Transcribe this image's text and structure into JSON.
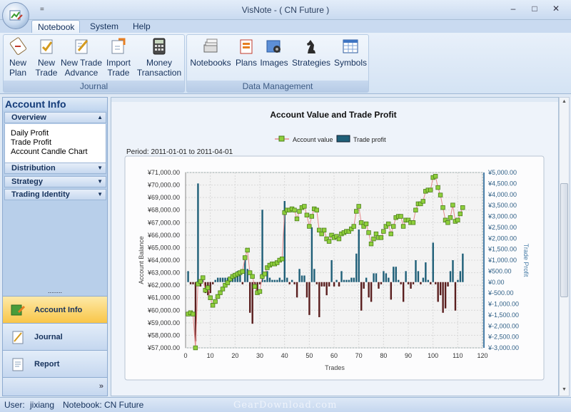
{
  "window": {
    "title": "VisNote - ( CN Future )",
    "qat_label": "=",
    "minimize": "–",
    "maximize": "□",
    "close": "✕",
    "accent": "#c9daf0"
  },
  "tabs": [
    "Notebook",
    "System",
    "Help"
  ],
  "ribbon": {
    "groups": [
      {
        "label": "Journal",
        "buttons": [
          {
            "line1": "New",
            "line2": "Plan",
            "icon": "new-plan-icon"
          },
          {
            "line1": "New",
            "line2": "Trade",
            "icon": "new-trade-icon"
          },
          {
            "line1": "New Trade",
            "line2": "Advance",
            "icon": "new-trade-advance-icon"
          },
          {
            "line1": "Import",
            "line2": "Trade",
            "icon": "import-trade-icon"
          },
          {
            "line1": "Money",
            "line2": "Transaction",
            "icon": "calculator-icon"
          }
        ]
      },
      {
        "label": "Data Management",
        "buttons": [
          {
            "line1": "Notebooks",
            "icon": "notebooks-icon"
          },
          {
            "line1": "Plans",
            "icon": "plans-icon"
          },
          {
            "line1": "Images",
            "icon": "images-icon"
          },
          {
            "line1": "Strategies",
            "icon": "chess-knight-icon"
          },
          {
            "line1": "Symbols",
            "icon": "symbols-table-icon"
          }
        ]
      }
    ]
  },
  "left_panel": {
    "title": "Account Info",
    "sections": [
      {
        "label": "Overview",
        "expanded": true,
        "items": [
          "Daily Profit",
          "Trade Profit",
          "Account Candle Chart"
        ]
      },
      {
        "label": "Distribution",
        "expanded": false
      },
      {
        "label": "Strategy",
        "expanded": false
      },
      {
        "label": "Trading Identity",
        "expanded": false
      }
    ],
    "splitter": "........",
    "nav": [
      {
        "label": "Account Info",
        "active": true,
        "icon": "account-info-icon"
      },
      {
        "label": "Journal",
        "active": false,
        "icon": "journal-icon"
      },
      {
        "label": "Report",
        "active": false,
        "icon": "report-icon"
      }
    ],
    "more": "»"
  },
  "status": {
    "user_label": "User:",
    "user": "jixiang",
    "notebook_label": "Notebook:",
    "notebook": "CN Future",
    "watermark": "GearDownload.com"
  },
  "chart_data": {
    "type": "line",
    "title": "Account Value and Trade Profit",
    "period": "Period: 2011-01-01 to 2011-04-01",
    "xlabel": "Trades",
    "ylabel": "Account Balance",
    "y2label": "Trade Profit",
    "xlim": [
      0,
      120
    ],
    "xticks": [
      "0",
      "10",
      "20",
      "30",
      "40",
      "50",
      "60",
      "70",
      "80",
      "90",
      "100",
      "110",
      "120"
    ],
    "ylim": [
      57000,
      71000
    ],
    "yticks": [
      "¥57,000.00",
      "¥58,000.00",
      "¥59,000.00",
      "¥60,000.00",
      "¥61,000.00",
      "¥62,000.00",
      "¥63,000.00",
      "¥64,000.00",
      "¥65,000.00",
      "¥66,000.00",
      "¥67,000.00",
      "¥68,000.00",
      "¥69,000.00",
      "¥70,000.00",
      "¥71,000.00"
    ],
    "y2lim": [
      -3000,
      5000
    ],
    "y2ticks": [
      "¥-3,000.00",
      "¥-2,500.00",
      "¥-2,000.00",
      "¥-1,500.00",
      "¥-1,000.00",
      "¥-500.00",
      "¥0.00",
      "¥500.00",
      "¥1,000.00",
      "¥1,500.00",
      "¥2,000.00",
      "¥2,500.00",
      "¥3,000.00",
      "¥3,500.00",
      "¥4,000.00",
      "¥4,500.00",
      "¥5,000.00"
    ],
    "legend_position": "top",
    "grid": true,
    "series": [
      {
        "name": "Account value",
        "kind": "line",
        "axis": "left",
        "color": "#e58a8a",
        "marker_color": "#8fcf3c",
        "values": [
          59700,
          59800,
          59700,
          57000,
          62100,
          62300,
          62600,
          61600,
          61800,
          61000,
          60400,
          60700,
          61100,
          61400,
          61700,
          62000,
          62200,
          62500,
          62700,
          62800,
          62900,
          63000,
          63100,
          64200,
          64800,
          63000,
          62700,
          61900,
          61400,
          61500,
          62700,
          62900,
          63400,
          63600,
          63700,
          63700,
          63800,
          64000,
          64100,
          67800,
          68000,
          68000,
          68100,
          68000,
          67300,
          67900,
          68200,
          68300,
          67600,
          66700,
          67500,
          68100,
          68000,
          66400,
          66100,
          66400,
          65700,
          65500,
          66000,
          65800,
          65900,
          65700,
          66100,
          66200,
          66300,
          66300,
          66500,
          66700,
          67900,
          68300,
          67000,
          66700,
          66900,
          66200,
          65300,
          65700,
          66100,
          65800,
          65800,
          66300,
          66700,
          66900,
          66100,
          66700,
          67400,
          67500,
          67500,
          66700,
          67200,
          67200,
          67000,
          67000,
          68000,
          68500,
          68500,
          68700,
          69500,
          69600,
          69600,
          70600,
          70700,
          69800,
          69200,
          68200,
          67200,
          67000,
          67400,
          68400,
          67100,
          67200,
          67700,
          68200
        ]
      },
      {
        "name": "Trade profit",
        "kind": "bar",
        "axis": "right",
        "color": "#1f5f78",
        "negative_color": "#5a1e1e",
        "values": [
          500,
          -100,
          -100,
          -2700,
          4500,
          -200,
          100,
          -500,
          -600,
          -500,
          -100,
          100,
          200,
          200,
          200,
          200,
          200,
          200,
          300,
          400,
          500,
          500,
          -100,
          1000,
          600,
          -1400,
          -1900,
          -300,
          -500,
          -100,
          3300,
          100,
          500,
          200,
          100,
          100,
          100,
          200,
          100,
          3700,
          200,
          -100,
          100,
          -100,
          -700,
          600,
          300,
          300,
          -700,
          -1500,
          2500,
          600,
          -100,
          -1600,
          -200,
          -200,
          -600,
          -200,
          1000,
          -200,
          100,
          -200,
          500,
          100,
          100,
          100,
          200,
          200,
          1300,
          2400,
          -1300,
          -300,
          200,
          -700,
          -900,
          400,
          400,
          -300,
          -100,
          500,
          400,
          200,
          -800,
          700,
          700,
          100,
          -100,
          -900,
          500,
          -100,
          -300,
          -100,
          1000,
          500,
          -100,
          200,
          900,
          100,
          -100,
          1800,
          -100,
          -900,
          -600,
          -1400,
          -1200,
          -200,
          500,
          1000,
          -1300,
          100,
          500,
          1300
        ]
      }
    ]
  }
}
